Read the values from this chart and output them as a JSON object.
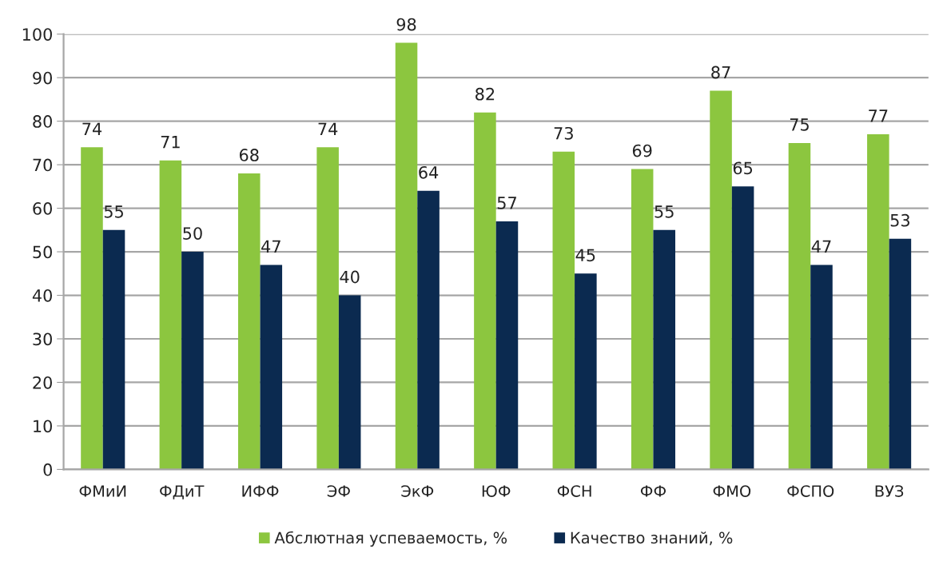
{
  "chart_data": {
    "type": "bar",
    "categories": [
      "ФМиИ",
      "ФДиТ",
      "ИФФ",
      "ЭФ",
      "ЭкФ",
      "ЮФ",
      "ФСН",
      "ФФ",
      "ФМО",
      "ФСПО",
      "ВУЗ"
    ],
    "series": [
      {
        "name": "Абслютная успеваемость, %",
        "color": "#8cc63f",
        "values": [
          74,
          71,
          68,
          74,
          98,
          82,
          73,
          69,
          87,
          75,
          77
        ]
      },
      {
        "name": "Качество знаний, %",
        "color": "#0b2a50",
        "values": [
          55,
          50,
          47,
          40,
          64,
          57,
          45,
          55,
          65,
          47,
          53
        ]
      }
    ],
    "ylim": [
      0,
      100
    ],
    "yticks": [
      0,
      10,
      20,
      30,
      40,
      50,
      60,
      70,
      80,
      90,
      100
    ],
    "grid": "y",
    "legend": "bottom",
    "data_labels": true
  }
}
